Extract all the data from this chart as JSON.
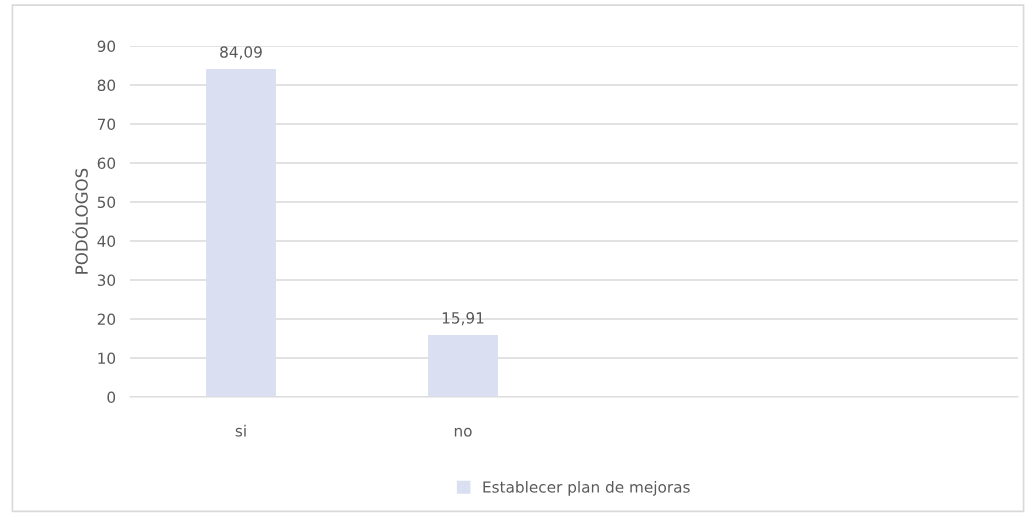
{
  "chart_data": {
    "type": "bar",
    "ylabel": "PODÓLOGOS",
    "categories": [
      "si",
      "no",
      null,
      null
    ],
    "series": [
      {
        "name": "Establecer plan de mejoras",
        "color": "#dae0f2",
        "values": [
          84.09,
          15.91,
          null,
          null
        ],
        "value_labels": [
          "84,09",
          "15,91",
          null,
          null
        ]
      }
    ],
    "ylim": [
      0,
      90
    ],
    "yticks": [
      0,
      10,
      20,
      30,
      40,
      50,
      60,
      70,
      80,
      90
    ],
    "grid": "y",
    "legend": "bottom"
  }
}
